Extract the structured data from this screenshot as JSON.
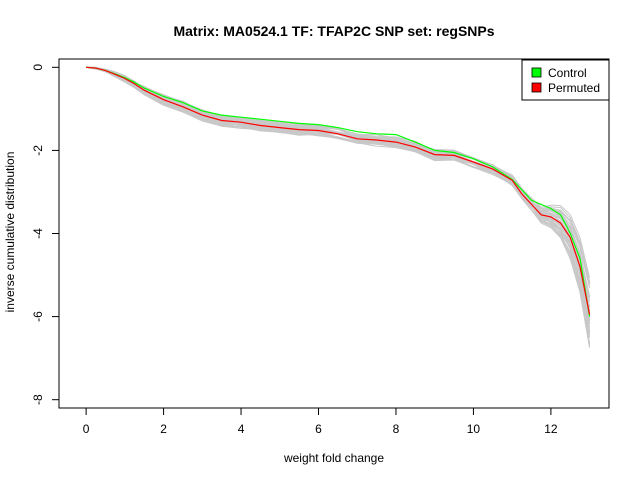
{
  "chart_data": {
    "type": "line",
    "title": "Matrix: MA0524.1 TF: TFAP2C SNP set: regSNPs",
    "xlabel": "weight fold change",
    "ylabel": "inverse cumulative distribution",
    "xlim": [
      -0.7,
      13.5
    ],
    "ylim": [
      -8.2,
      0.2
    ],
    "x_ticks": [
      0,
      2,
      4,
      6,
      8,
      10,
      12
    ],
    "x_tick_labels": [
      "0",
      "2",
      "4",
      "6",
      "8",
      "10",
      "12"
    ],
    "y_ticks": [
      0,
      -2,
      -4,
      -6,
      -8
    ],
    "y_tick_labels": [
      "0",
      "-2",
      "-4",
      "-6",
      "-8"
    ],
    "grid": false,
    "legend_position": "top-right",
    "legend": [
      {
        "label": "Control",
        "color": "#00ff00"
      },
      {
        "label": "Permuted",
        "color": "#ff0000"
      }
    ],
    "series": [
      {
        "name": "Control",
        "color": "#00ff00",
        "x": [
          0,
          0.25,
          0.5,
          0.75,
          1.0,
          1.25,
          1.5,
          2.0,
          2.5,
          3.0,
          3.5,
          4.0,
          4.5,
          5.0,
          5.5,
          6.0,
          6.5,
          7.0,
          7.5,
          8.0,
          8.5,
          9.0,
          9.5,
          10.0,
          10.5,
          11.0,
          11.25,
          11.5,
          11.75,
          12.0,
          12.25,
          12.5,
          12.75,
          13.0
        ],
        "y": [
          0,
          -0.02,
          -0.08,
          -0.16,
          -0.25,
          -0.36,
          -0.5,
          -0.7,
          -0.85,
          -1.05,
          -1.15,
          -1.2,
          -1.25,
          -1.3,
          -1.35,
          -1.38,
          -1.45,
          -1.55,
          -1.6,
          -1.62,
          -1.8,
          -2.0,
          -2.05,
          -2.2,
          -2.4,
          -2.7,
          -2.95,
          -3.2,
          -3.3,
          -3.4,
          -3.55,
          -4.0,
          -4.6,
          -6.0
        ]
      },
      {
        "name": "Permuted",
        "color": "#ff0000",
        "x": [
          0,
          0.25,
          0.5,
          0.75,
          1.0,
          1.25,
          1.5,
          2.0,
          2.5,
          3.0,
          3.5,
          4.0,
          4.5,
          5.0,
          5.5,
          6.0,
          6.5,
          7.0,
          7.5,
          8.0,
          8.5,
          9.0,
          9.5,
          10.0,
          10.5,
          11.0,
          11.25,
          11.5,
          11.75,
          12.0,
          12.25,
          12.5,
          12.75,
          13.0
        ],
        "y": [
          0,
          -0.02,
          -0.08,
          -0.17,
          -0.27,
          -0.4,
          -0.55,
          -0.78,
          -0.95,
          -1.15,
          -1.28,
          -1.32,
          -1.4,
          -1.45,
          -1.5,
          -1.52,
          -1.6,
          -1.72,
          -1.75,
          -1.8,
          -1.92,
          -2.1,
          -2.12,
          -2.28,
          -2.45,
          -2.72,
          -3.05,
          -3.3,
          -3.55,
          -3.6,
          -3.75,
          -4.1,
          -4.8,
          -5.95
        ]
      }
    ],
    "background_series_color": "#c8c8c8",
    "background_series_count": 40
  }
}
